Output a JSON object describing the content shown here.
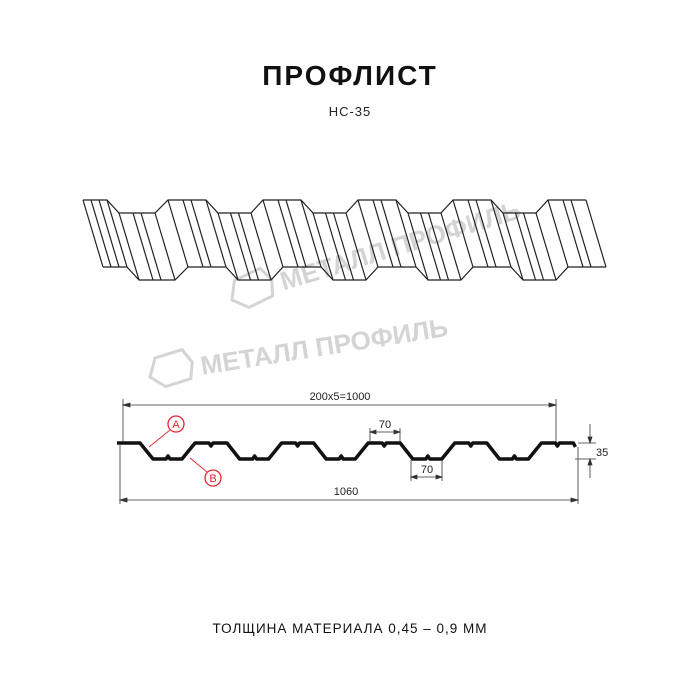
{
  "header": {
    "title": "ПРОФЛИСТ",
    "subtitle": "НС-35"
  },
  "watermark": {
    "text": "МЕТАЛЛ ПРОФИЛЬ",
    "color": "#d4d4d4"
  },
  "profile": {
    "dimensions": {
      "pitch_total": "200x5=1000",
      "top_flat": "70",
      "bottom_flat": "70",
      "overall_width": "1060",
      "height": "35"
    },
    "callouts": {
      "a": "A",
      "b": "B",
      "color": "#e0282e"
    }
  },
  "footer": {
    "thickness": "ТОЛЩИНА МАТЕРИАЛА 0,45 – 0,9 ММ"
  }
}
